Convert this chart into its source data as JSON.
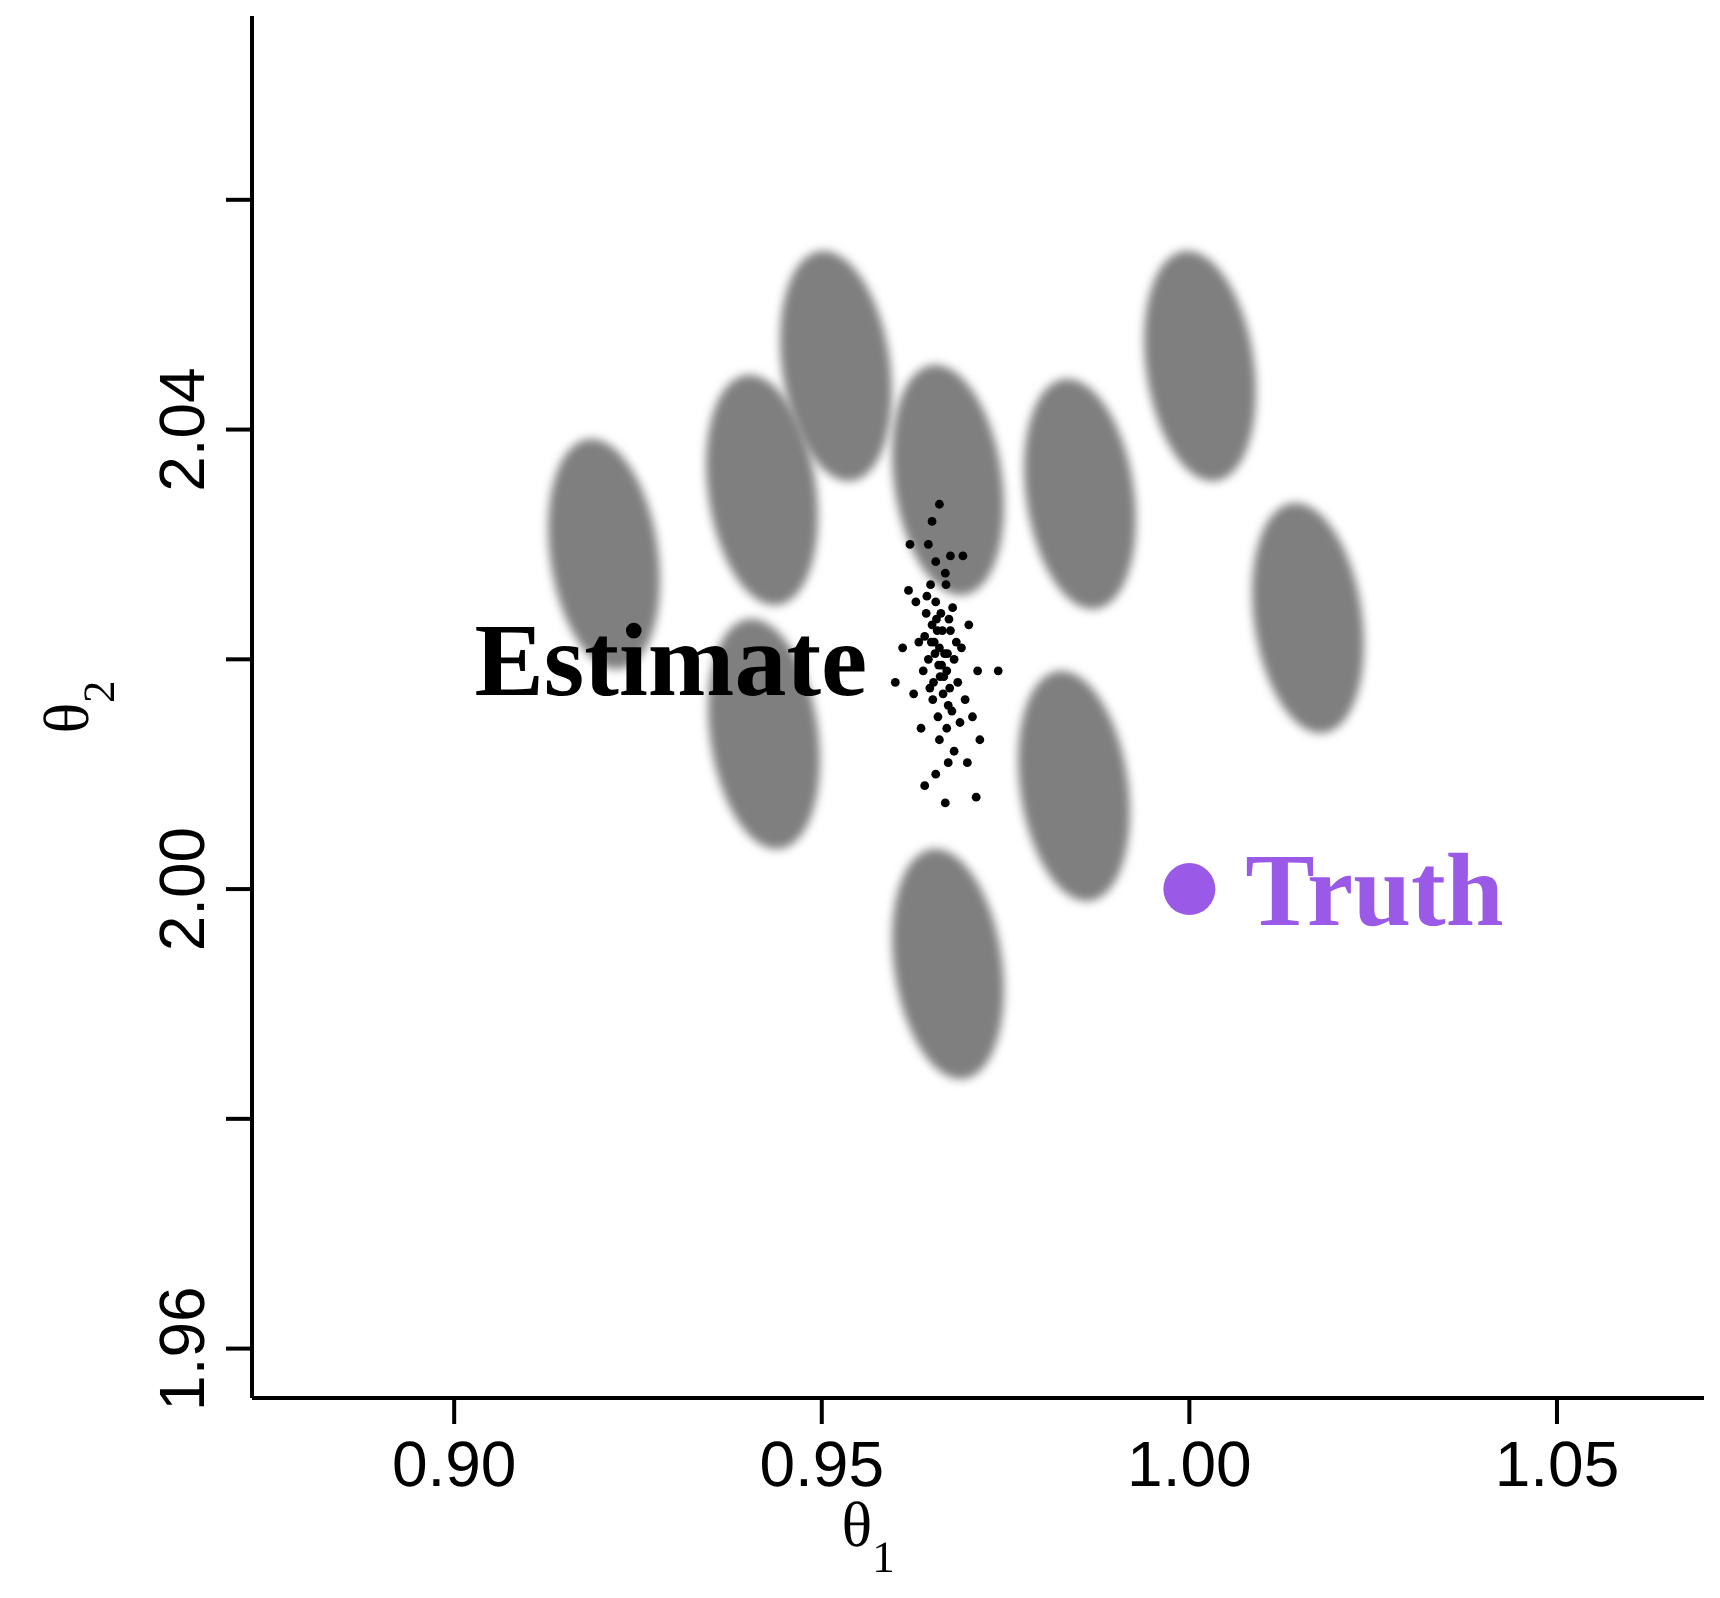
{
  "chart_data": {
    "type": "scatter",
    "xlabel": "θ$_{1}$",
    "ylabel": "θ$_{2}$",
    "xlim": [
      0.8725,
      1.07
    ],
    "ylim": [
      1.9557,
      2.076
    ],
    "xticks": [
      {
        "value": 0.9,
        "label": "0.90"
      },
      {
        "value": 0.95,
        "label": "0.95"
      },
      {
        "value": 1.0,
        "label": "1.00"
      },
      1.05
    ],
    "yticks": [
      {
        "value": 1.96,
        "label": "1.96"
      },
      {
        "value": 1.98,
        "label": null
      },
      {
        "value": 2.0,
        "label": "2.00"
      },
      {
        "value": 2.02,
        "label": null
      },
      {
        "value": 2.04,
        "label": "2.04"
      },
      {
        "value": 2.06,
        "label": null
      }
    ],
    "grid": false,
    "legend": false,
    "marker": "circle",
    "series": [
      {
        "name": "Estimate",
        "color": "#000000",
        "x": [
          0.966,
          0.965,
          0.967,
          0.9645,
          0.9675,
          0.9655,
          0.9665,
          0.964,
          0.968,
          0.9662,
          0.9652,
          0.9672,
          0.9648,
          0.9668,
          0.9658,
          0.9678,
          0.9638,
          0.9685,
          0.9642,
          0.967,
          0.9655,
          0.969,
          0.9632,
          0.9675,
          0.966,
          0.9695,
          0.9628,
          0.9688,
          0.9645,
          0.968,
          0.9663,
          0.9653,
          0.9673,
          0.9647,
          0.9667,
          0.9657,
          0.9677,
          0.9643,
          0.9683,
          0.9661,
          0.9651,
          0.9669,
          0.9659,
          0.9671,
          0.9649,
          0.9664,
          0.9654,
          0.9674,
          0.9656,
          0.9666,
          0.9618,
          0.97,
          0.9625,
          0.9705,
          0.965,
          0.9672,
          0.961,
          0.9712,
          0.9635,
          0.9698,
          0.966,
          0.9692,
          0.962,
          0.9715,
          0.9655,
          0.974,
          0.96,
          0.971,
          0.964,
          0.9668
        ],
        "values": [
          2.021,
          2.023,
          2.019,
          2.02,
          2.0225,
          2.025,
          2.017,
          2.022,
          2.02,
          2.024,
          2.018,
          2.016,
          2.0265,
          2.0275,
          2.015,
          2.0245,
          2.019,
          2.018,
          2.024,
          2.014,
          2.0285,
          2.021,
          2.0215,
          2.029,
          2.013,
          2.0165,
          2.025,
          2.0145,
          2.03,
          2.012,
          2.0195,
          2.0215,
          2.0235,
          2.0175,
          2.0205,
          2.0225,
          2.0155,
          2.0255,
          2.0215,
          2.0185,
          2.0165,
          2.0265,
          2.0195,
          2.0205,
          2.0215,
          2.0225,
          2.0205,
          2.0175,
          2.0235,
          2.0185,
          2.026,
          2.023,
          2.017,
          2.015,
          2.032,
          2.011,
          2.021,
          2.019,
          2.014,
          2.011,
          2.0335,
          2.029,
          2.03,
          2.013,
          2.01,
          2.019,
          2.018,
          2.008,
          2.009,
          2.0075
        ]
      },
      {
        "name": "Truth",
        "color": "#9b59e8",
        "x": [
          1.0
        ],
        "values": [
          2.0
        ]
      }
    ]
  }
}
